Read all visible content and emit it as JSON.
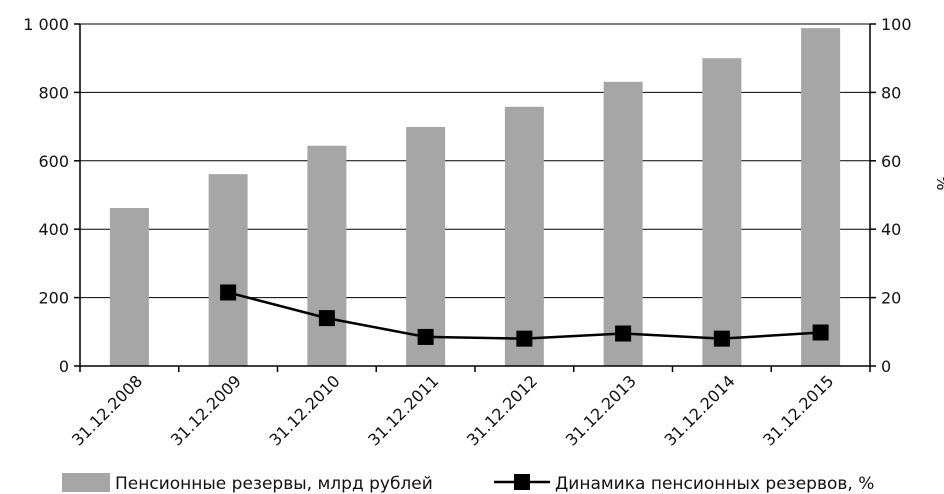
{
  "chart_data": {
    "type": "bar",
    "categories": [
      "31.12.2008",
      "31.12.2009",
      "31.12.2010",
      "31.12.2011",
      "31.12.2012",
      "31.12.2013",
      "31.12.2014",
      "31.12.2015"
    ],
    "series": [
      {
        "name": "Пенсионные резервы, млрд рублей",
        "type": "bar",
        "axis": "left",
        "color": "#a6a6a6",
        "values": [
          462,
          561,
          644,
          699,
          758,
          831,
          900,
          988
        ]
      },
      {
        "name": "Динамика пенсионных резервов, %",
        "type": "line",
        "axis": "right",
        "color": "#000000",
        "values": [
          null,
          21.5,
          14.0,
          8.5,
          8.0,
          9.5,
          8.0,
          9.8
        ]
      }
    ],
    "y_left": {
      "ylim": [
        0,
        1000
      ],
      "ticks": [
        0,
        200,
        400,
        600,
        800,
        1000
      ],
      "tick_labels": [
        "0",
        "200",
        "400",
        "600",
        "800",
        "1 000"
      ]
    },
    "y_right": {
      "ylim": [
        0,
        100
      ],
      "ticks": [
        0,
        20,
        40,
        60,
        80,
        100
      ],
      "tick_labels": [
        "0",
        "20",
        "40",
        "60",
        "80",
        "100"
      ],
      "label": "%"
    },
    "grid": true,
    "legend": "bottom"
  }
}
